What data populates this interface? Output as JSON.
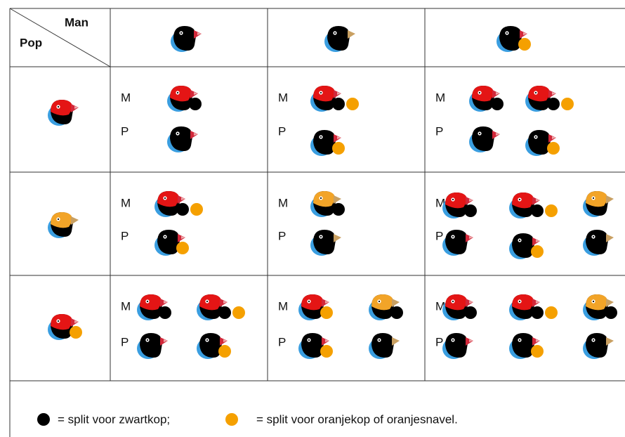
{
  "header": {
    "man": "Man",
    "pop": "Pop"
  },
  "rows": [
    {
      "cells": [
        {
          "m": "M",
          "p": "P"
        },
        {
          "m": "M",
          "p": "P"
        },
        {
          "m": "M",
          "p": "P"
        }
      ]
    },
    {
      "cells": [
        {
          "m": "M",
          "p": "P"
        },
        {
          "m": "M",
          "p": "P"
        },
        {
          "m": "M",
          "p": "P"
        }
      ]
    },
    {
      "cells": [
        {
          "m": "M",
          "p": "P"
        },
        {
          "m": "M",
          "p": "P"
        },
        {
          "m": "M",
          "p": "P"
        }
      ]
    }
  ],
  "legend": {
    "black": "= split voor zwartkop;",
    "orange": "= split voor oranjekop of oranjesnavel."
  }
}
